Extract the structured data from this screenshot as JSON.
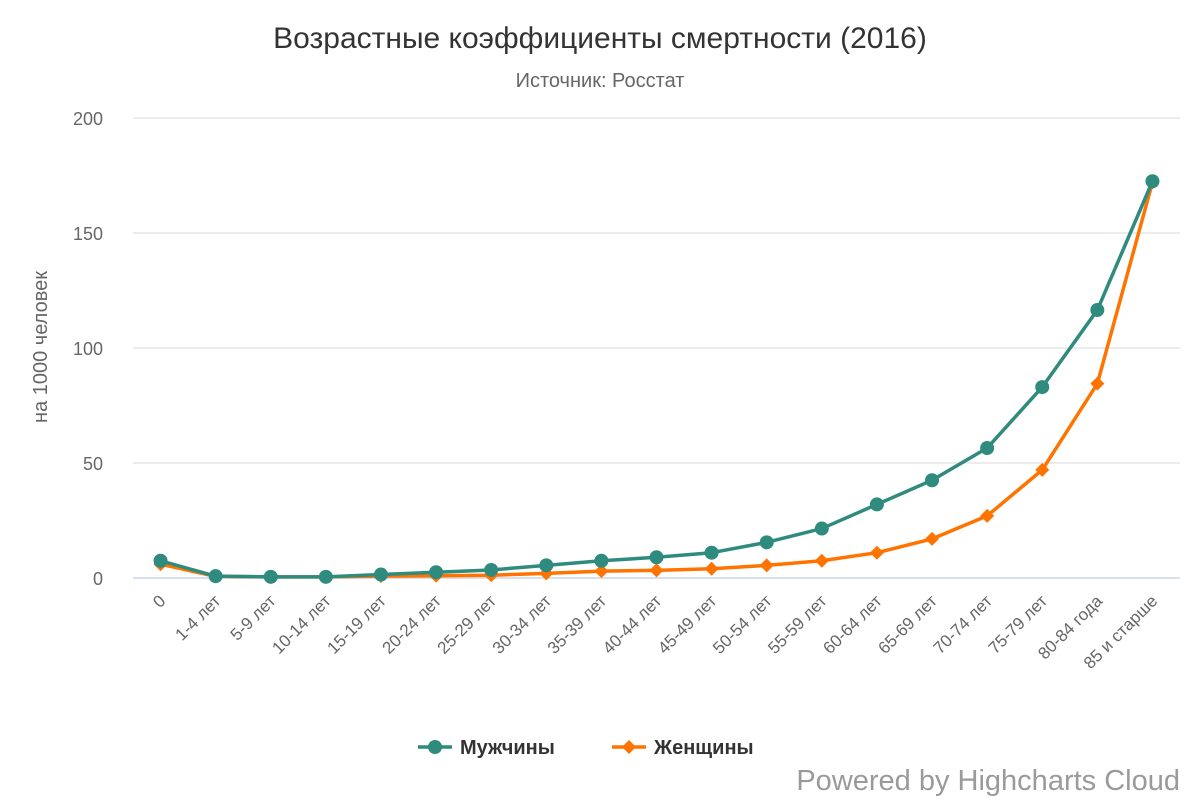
{
  "chart_data": {
    "type": "line",
    "title": "Возрастные коэффициенты смертности (2016)",
    "subtitle": "Источник: Росстат",
    "ylabel": "на 1000 человек",
    "xlabel": "",
    "ylim": [
      0,
      200
    ],
    "yticks": [
      0,
      50,
      100,
      150,
      200
    ],
    "grid": true,
    "legend_position": "bottom-center",
    "categories": [
      "0",
      "1-4 лет",
      "5-9 лет",
      "10-14 лет",
      "15-19 лет",
      "20-24 лет",
      "25-29 лет",
      "30-34 лет",
      "35-39 лет",
      "40-44 лет",
      "45-49 лет",
      "50-54 лет",
      "55-59 лет",
      "60-64 лет",
      "65-69 лет",
      "70-74 лет",
      "75-79 лет",
      "80-84 года",
      "85 и старше"
    ],
    "series": [
      {
        "name": "Мужчины",
        "color": "#2e8b7d",
        "marker": "circle",
        "values": [
          7.5,
          0.8,
          0.5,
          0.5,
          1.5,
          2.5,
          3.5,
          5.5,
          7.5,
          9.0,
          11.0,
          15.5,
          21.5,
          32.0,
          42.5,
          56.5,
          83.0,
          116.5,
          172.5
        ]
      },
      {
        "name": "Женщины",
        "color": "#ff7300",
        "marker": "diamond",
        "values": [
          6.0,
          0.7,
          0.5,
          0.5,
          0.8,
          1.0,
          1.2,
          2.0,
          3.0,
          3.3,
          4.0,
          5.5,
          7.5,
          11.0,
          17.0,
          27.0,
          47.0,
          84.5,
          172.0
        ]
      }
    ]
  },
  "credits": "Powered by Highcharts Cloud"
}
